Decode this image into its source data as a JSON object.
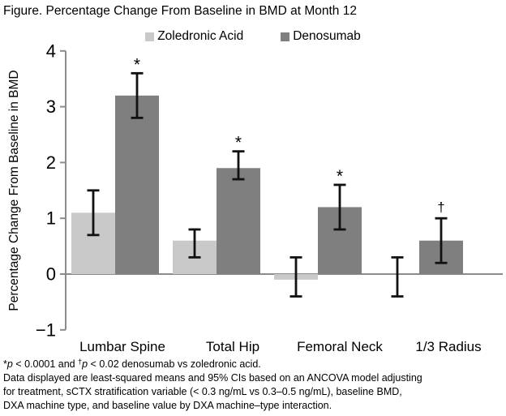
{
  "figure_title": "Figure. Percentage Change From Baseline in BMD at Month 12",
  "colors": {
    "zoledronic_bar": "#c9c9c9",
    "denosumab_bar": "#7f7f7f",
    "axis_line": "#8c8c8c",
    "error_bar": "#111111",
    "text": "#000000"
  },
  "chart_data": {
    "type": "bar",
    "title": "Percentage Change From Baseline in BMD at Month 12",
    "xlabel": "",
    "ylabel": "Percentage Change From Baseline in BMD",
    "ylim": [
      -1,
      4
    ],
    "yticks": [
      4,
      3,
      2,
      1,
      0,
      -1
    ],
    "grid": false,
    "legend_position": "top-center",
    "error_bars": "95% CI",
    "categories": [
      "Lumbar Spine",
      "Total Hip",
      "Femoral Neck",
      "1/3 Radius"
    ],
    "series": [
      {
        "name": "Zoledronic Acid",
        "color": "#c9c9c9",
        "values": [
          1.1,
          0.6,
          -0.1,
          0.0
        ],
        "ci_low": [
          0.7,
          0.3,
          -0.4,
          -0.4
        ],
        "ci_high": [
          1.5,
          0.8,
          0.3,
          0.3
        ],
        "sig": [
          "",
          "",
          "",
          ""
        ]
      },
      {
        "name": "Denosumab",
        "color": "#7f7f7f",
        "values": [
          3.2,
          1.9,
          1.2,
          0.6
        ],
        "ci_low": [
          2.8,
          1.7,
          0.8,
          0.2
        ],
        "ci_high": [
          3.6,
          2.2,
          1.6,
          1.0
        ],
        "sig": [
          "*",
          "*",
          "*",
          "†"
        ]
      }
    ]
  },
  "footnotes": {
    "line1": {
      "star": "*",
      "p1": "p",
      "mid": " < 0.0001 and ",
      "dagger": "†",
      "p2": "p",
      "end": " < 0.02 denosumab vs zoledronic acid."
    },
    "line2": "Data displayed are least-squared means and 95% CIs based on an ANCOVA model adjusting",
    "line3": "for treatment, sCTX stratification variable (< 0.3 ng/mL vs 0.3–0.5 ng/mL), baseline BMD,",
    "line4": "DXA machine type, and baseline value by DXA machine–type interaction."
  }
}
